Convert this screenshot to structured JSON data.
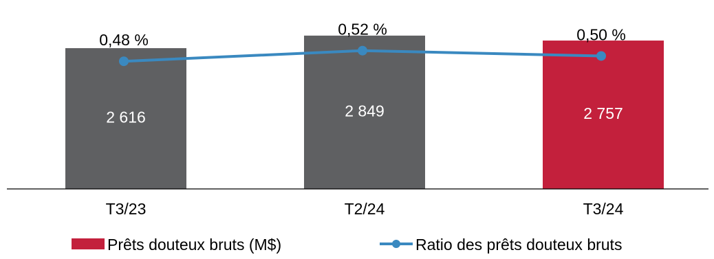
{
  "chart_data": {
    "type": "bar",
    "categories": [
      "T3/23",
      "T2/24",
      "T3/24"
    ],
    "series": [
      {
        "name": "Prêts douteux bruts (M$)",
        "type": "bar",
        "values": [
          2616,
          2849,
          2757
        ],
        "value_labels": [
          "2 616",
          "2 849",
          "2 757"
        ],
        "colors": [
          "#5f6062",
          "#5f6062",
          "#c3203c"
        ]
      },
      {
        "name": "Ratio des prêts douteux bruts",
        "type": "line",
        "unit": "%",
        "values": [
          0.48,
          0.52,
          0.5
        ],
        "value_labels": [
          "0,48 %",
          "0,52 %",
          "0,50 %"
        ],
        "color": "#3a89c0"
      }
    ],
    "legend": {
      "placement": "bottom",
      "items": [
        {
          "label": "Prêts douteux bruts (M$)",
          "color": "#c3203c",
          "marker": "square"
        },
        {
          "label": "Ratio des prêts douteux bruts",
          "color": "#3a89c0",
          "marker": "line-dot"
        }
      ]
    },
    "ylim_bars": [
      0,
      3000
    ],
    "ylim_line": [
      0,
      0.62
    ],
    "grid": false
  }
}
